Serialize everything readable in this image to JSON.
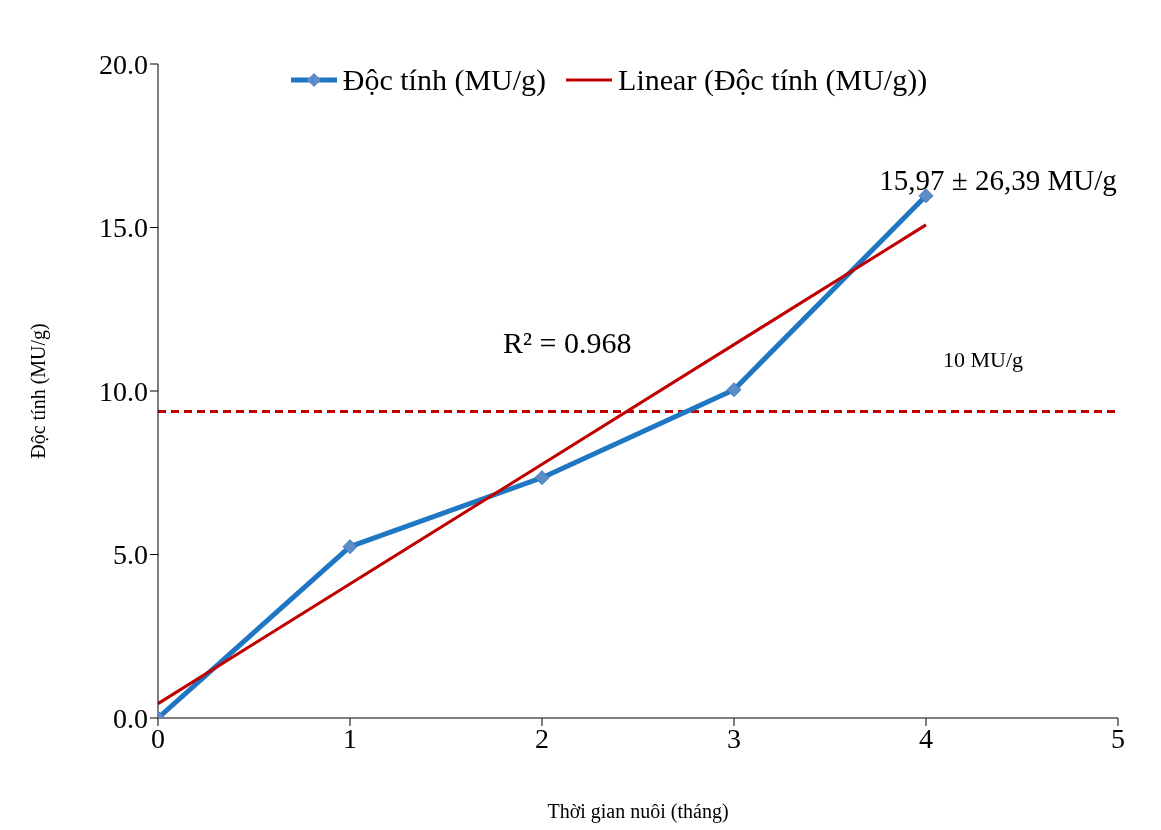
{
  "chart_data": {
    "type": "line",
    "xlabel": "Thời gian nuôi (tháng)",
    "ylabel": "Độc tính (MU/g)",
    "xlim": [
      0,
      5
    ],
    "xticks": [
      0,
      1,
      2,
      3,
      4,
      5
    ],
    "ylim": [
      0,
      20
    ],
    "yticks": [
      {
        "value": 0,
        "label": "0.0"
      },
      {
        "value": 5,
        "label": "5.0"
      },
      {
        "value": 10,
        "label": "10.0"
      },
      {
        "value": 15,
        "label": "15.0"
      },
      {
        "value": 20,
        "label": "20.0"
      }
    ],
    "x": [
      0,
      1,
      2,
      3,
      4
    ],
    "series": [
      {
        "name": "Độc tính (MU/g)",
        "color": "#1f77c4",
        "values": [
          0,
          5.24,
          7.35,
          10.04,
          15.97
        ],
        "marker": "diamond"
      },
      {
        "name": "Linear (Độc tính (MU/g))",
        "type": "line",
        "color": "#c00000",
        "x": [
          0,
          4
        ],
        "values": [
          0.44,
          15.08
        ],
        "marker": "none"
      }
    ],
    "ref_lines": [
      {
        "axis": "y",
        "value": 9.37,
        "label": "10 MU/g",
        "color": "#c00000",
        "line_style": "dashed"
      }
    ],
    "annotations": [
      "R² = 0.968",
      {
        "text": "15,97 ± 26,39 MU/g",
        "x": 4,
        "y": 15.97
      }
    ],
    "legend": "top",
    "grid": false
  }
}
